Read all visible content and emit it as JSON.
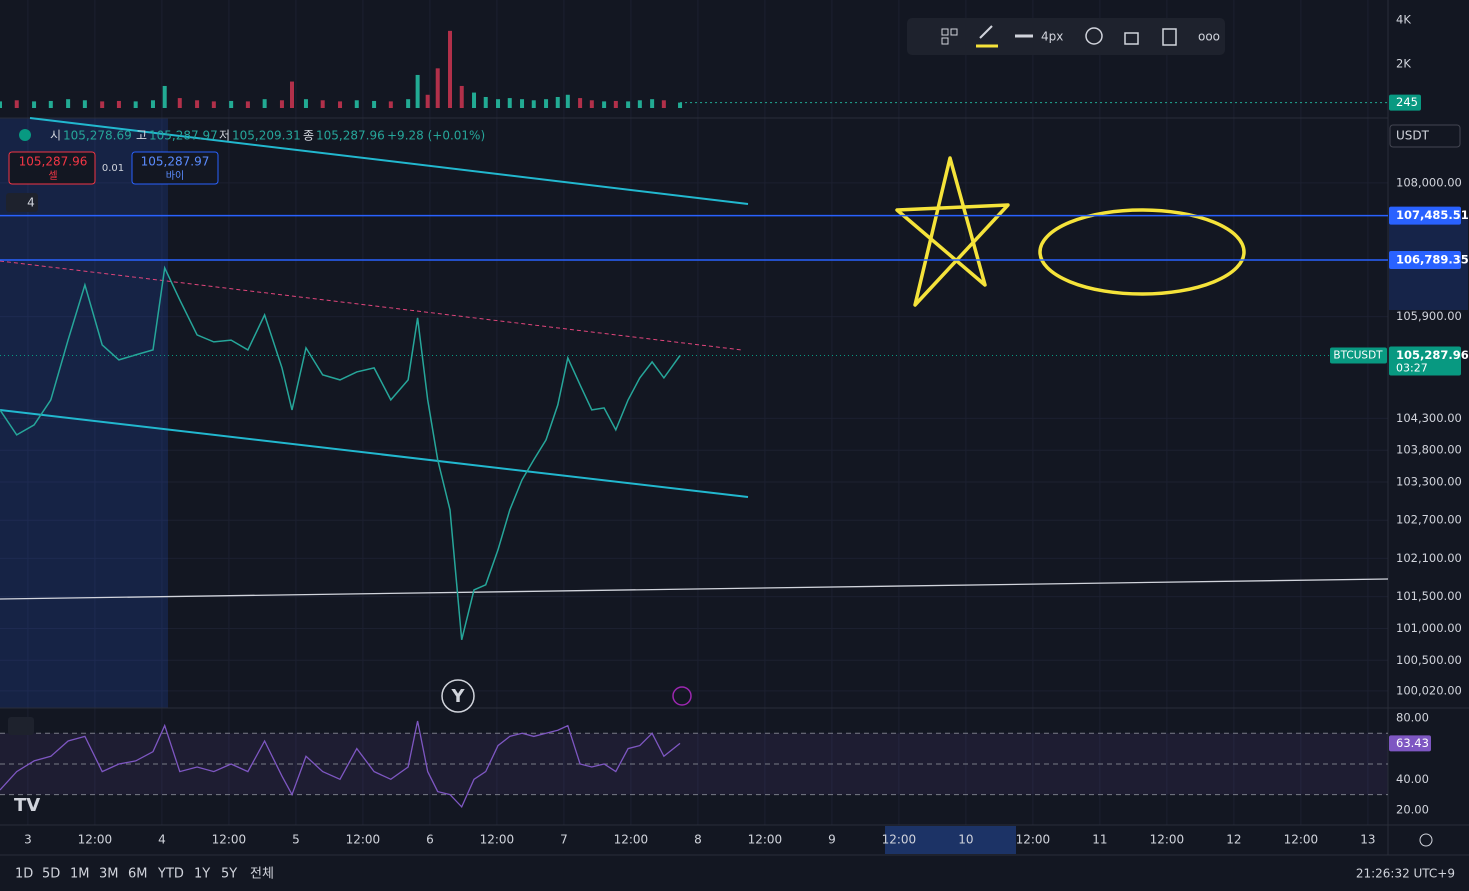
{
  "toolbar": {
    "width_label": "4px"
  },
  "currency": "USDT",
  "ohlc": {
    "items": [
      {
        "label": "시",
        "value": "105,278.69"
      },
      {
        "label": "고",
        "value": "105,287.97"
      },
      {
        "label": "저",
        "value": "105,209.31"
      },
      {
        "label": "종",
        "value": "105,287.96"
      }
    ],
    "change": "+9.28 (+0.01%)"
  },
  "trade": {
    "sell_price": "105,287.96",
    "sell_label": "셀",
    "quantity": "0.01",
    "buy_price": "105,287.97",
    "buy_label": "바이"
  },
  "indicator_count": "4",
  "marker": "Y",
  "ranges": [
    "1D",
    "5D",
    "1M",
    "3M",
    "6M",
    "YTD",
    "1Y",
    "5Y",
    "전체"
  ],
  "clock": "21:26:32 UTC+9",
  "chart_data": [
    {
      "type": "line",
      "symbol": "BTCUSDT",
      "x": [
        -5.0,
        -2.0,
        1.1,
        4.1,
        7.2,
        10.2,
        13.3,
        16.3,
        19.3,
        22.4,
        24.5,
        27.2,
        30.3,
        33.3,
        36.4,
        39.4,
        42.4,
        45.5,
        47.3,
        49.8,
        52.8,
        55.9,
        58.9,
        62.0,
        65.0,
        68.1,
        69.8,
        71.6,
        73.4,
        75.6,
        77.7,
        79.9,
        82.0,
        84.2,
        86.3,
        88.5,
        90.6,
        92.8,
        94.9,
        96.7,
        98.9,
        101.0,
        103.2,
        105.3,
        107.5,
        109.6,
        111.8,
        113.9,
        116.8
      ],
      "series": [
        {
          "name": "BTCUSDT",
          "color": "#26a69a",
          "values": [
            104434,
            104041,
            104198,
            104591,
            105534,
            106398,
            105455,
            105220,
            105298,
            105377,
            106665,
            106162,
            105612,
            105502,
            105530,
            105377,
            105926,
            105094,
            104434,
            105408,
            104984,
            104905,
            105031,
            105094,
            104591,
            104905,
            105879,
            104591,
            103649,
            102863,
            100821,
            101606,
            101685,
            102235,
            102863,
            103334,
            103649,
            103963,
            104513,
            105251,
            104827,
            104434,
            104465,
            104120,
            104591,
            104937,
            105188,
            104937,
            105288
          ]
        }
      ],
      "xlim": [
        -5.0,
        243.6
      ],
      "xticks": [
        {
          "value": 0,
          "label": "3"
        },
        {
          "value": 12,
          "label": "12:00"
        },
        {
          "value": 24,
          "label": "4"
        },
        {
          "value": 36,
          "label": "12:00"
        },
        {
          "value": 48,
          "label": "5"
        },
        {
          "value": 60,
          "label": "12:00"
        },
        {
          "value": 72,
          "label": "6"
        },
        {
          "value": 84,
          "label": "12:00"
        },
        {
          "value": 96,
          "label": "7"
        },
        {
          "value": 108,
          "label": "12:00"
        },
        {
          "value": 120,
          "label": "8"
        },
        {
          "value": 132,
          "label": "12:00"
        },
        {
          "value": 144,
          "label": "9"
        },
        {
          "value": 156,
          "label": "12:00"
        },
        {
          "value": 168,
          "label": "10"
        },
        {
          "value": 180,
          "label": "12:00"
        },
        {
          "value": 192,
          "label": "11"
        },
        {
          "value": 204,
          "label": "12:00"
        },
        {
          "value": 216,
          "label": "12"
        },
        {
          "value": 228,
          "label": "12:00"
        },
        {
          "value": 240,
          "label": "13"
        }
      ],
      "ylim": [
        99750,
        109020
      ],
      "yticks": [
        {
          "value": 108000,
          "label": "108,000.00"
        },
        {
          "value": 105900,
          "label": "105,900.00"
        },
        {
          "value": 104300,
          "label": "104,300.00"
        },
        {
          "value": 103800,
          "label": "103,800.00"
        },
        {
          "value": 103300,
          "label": "103,300.00"
        },
        {
          "value": 102700,
          "label": "102,700.00"
        },
        {
          "value": 102100,
          "label": "102,100.00"
        },
        {
          "value": 101500,
          "label": "101,500.00"
        },
        {
          "value": 101000,
          "label": "101,000.00"
        },
        {
          "value": 100500,
          "label": "100,500.00"
        },
        {
          "value": 100020,
          "label": "100,020.00"
        }
      ],
      "price_lines": [
        {
          "value": 107485.51,
          "label": "107,485.51"
        },
        {
          "value": 106789.35,
          "label": "106,789.35"
        }
      ],
      "last_price": {
        "value": 105287.96,
        "label": "105,287.96",
        "countdown": "03:27"
      },
      "grid": true
    },
    {
      "type": "bar",
      "x": [
        -5.0,
        -2.0,
        1.1,
        4.1,
        7.2,
        10.2,
        13.3,
        16.3,
        19.3,
        22.4,
        24.5,
        27.2,
        30.3,
        33.3,
        36.4,
        39.4,
        42.4,
        45.5,
        47.3,
        49.8,
        52.8,
        55.9,
        58.9,
        62.0,
        65.0,
        68.1,
        69.8,
        71.6,
        73.4,
        75.6,
        77.7,
        79.9,
        82.0,
        84.2,
        86.3,
        88.5,
        90.6,
        92.8,
        94.9,
        96.7,
        98.9,
        101.0,
        103.2,
        105.3,
        107.5,
        109.6,
        111.8,
        113.9,
        116.8
      ],
      "values": [
        300,
        350,
        300,
        320,
        400,
        350,
        300,
        320,
        300,
        350,
        1000,
        450,
        350,
        300,
        320,
        300,
        400,
        350,
        1200,
        400,
        350,
        300,
        350,
        320,
        300,
        400,
        1500,
        600,
        1800,
        3500,
        1000,
        700,
        500,
        400,
        450,
        400,
        350,
        400,
        500,
        600,
        450,
        350,
        300,
        320,
        300,
        350,
        400,
        350,
        245
      ],
      "ylim": [
        0,
        4900
      ],
      "yticks": [
        {
          "value": 2000,
          "label": "2K"
        },
        {
          "value": 4000,
          "label": "4K"
        }
      ]
    },
    {
      "type": "line",
      "x": [
        -5.0,
        -2.0,
        1.1,
        4.1,
        7.2,
        10.2,
        13.3,
        16.3,
        19.3,
        22.4,
        24.5,
        27.2,
        30.3,
        33.3,
        36.4,
        39.4,
        42.4,
        45.5,
        47.3,
        49.8,
        52.8,
        55.9,
        58.9,
        62.0,
        65.0,
        68.1,
        69.8,
        71.6,
        73.4,
        75.6,
        77.7,
        79.9,
        82.0,
        84.2,
        86.3,
        88.5,
        90.6,
        92.8,
        94.9,
        96.7,
        98.9,
        101.0,
        103.2,
        105.3,
        107.5,
        109.6,
        111.8,
        113.9,
        116.8
      ],
      "series": [
        {
          "name": "RSI",
          "color": "#7e57c2",
          "values": [
            33,
            45,
            52,
            55,
            65,
            68,
            45,
            50,
            52,
            58,
            75,
            45,
            48,
            45,
            50,
            45,
            65,
            42,
            30,
            55,
            45,
            40,
            60,
            45,
            40,
            48,
            78,
            45,
            32,
            30,
            22,
            40,
            45,
            62,
            68,
            70,
            68,
            70,
            72,
            75,
            50,
            48,
            50,
            45,
            60,
            62,
            70,
            55,
            63.43
          ]
        }
      ],
      "ylim": [
        10.2,
        86.5
      ],
      "yticks": [
        {
          "value": 80,
          "label": "80.00"
        },
        {
          "value": 40,
          "label": "40.00"
        },
        {
          "value": 20,
          "label": "20.00"
        }
      ],
      "bands": [
        70,
        50,
        30
      ]
    }
  ]
}
